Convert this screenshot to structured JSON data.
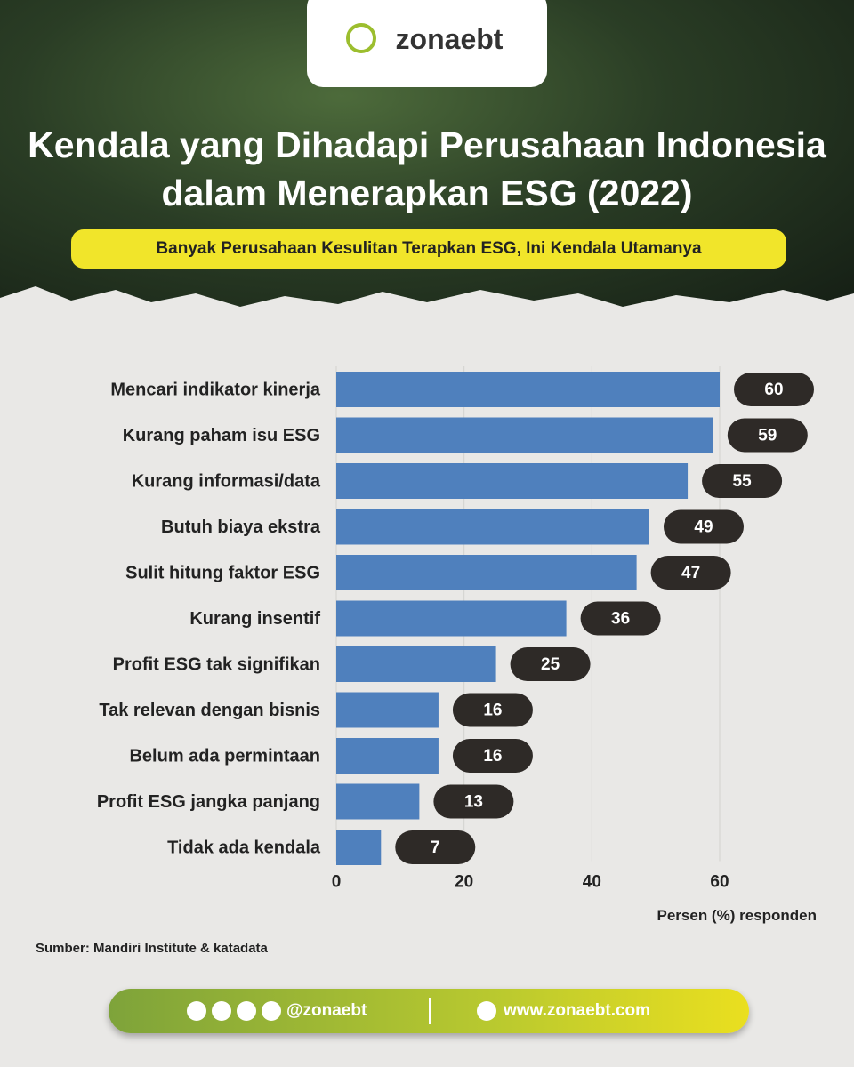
{
  "brand": "zonaebt",
  "chart_data": {
    "type": "bar",
    "orientation": "horizontal",
    "title": "Kendala yang Dihadapi Perusahaan Indonesia dalam Menerapkan ESG (2022)",
    "subtitle": "Banyak Perusahaan Kesulitan Terapkan ESG, Ini Kendala Utamanya",
    "categories": [
      "Mencari indikator kinerja",
      "Kurang paham isu ESG",
      "Kurang informasi/data",
      "Butuh biaya ekstra",
      "Sulit hitung faktor ESG",
      "Kurang insentif",
      "Profit ESG tak signifikan",
      "Tak relevan dengan bisnis",
      "Belum ada permintaan",
      "Profit ESG jangka panjang",
      "Tidak ada kendala"
    ],
    "values": [
      60,
      59,
      55,
      49,
      47,
      36,
      25,
      16,
      16,
      13,
      7
    ],
    "color": "#4f80bd",
    "xlim": [
      0,
      60
    ],
    "xticks": [
      0,
      20,
      40,
      60
    ],
    "xlabel": "Persen (%) responden",
    "grid": true,
    "source": "Sumber: Mandiri Institute & katadata"
  },
  "footer": {
    "social": "@zonaebt",
    "website": "www.zonaebt.com"
  }
}
